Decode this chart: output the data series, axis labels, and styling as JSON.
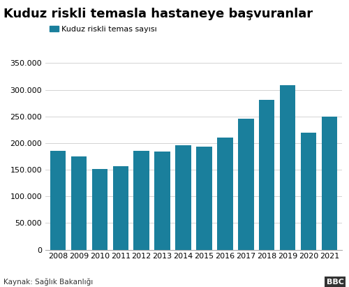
{
  "title": "Kuduz riskli temasla hastaneye başvuranlar",
  "legend_label": "Kuduz riskli temas sayısı",
  "source": "Kaynak: Sağlık Bakanlığı",
  "years": [
    2008,
    2009,
    2010,
    2011,
    2012,
    2013,
    2014,
    2015,
    2016,
    2017,
    2018,
    2019,
    2020,
    2021
  ],
  "values": [
    185000,
    175000,
    152000,
    156000,
    185000,
    184000,
    196000,
    193000,
    211000,
    246000,
    281000,
    308000,
    220000,
    250000
  ],
  "bar_color": "#1a7f9c",
  "background_color": "#ffffff",
  "ylim": [
    0,
    350000
  ],
  "yticks": [
    0,
    50000,
    100000,
    150000,
    200000,
    250000,
    300000,
    350000
  ],
  "title_fontsize": 13,
  "tick_fontsize": 8,
  "legend_fontsize": 8,
  "source_fontsize": 7.5
}
